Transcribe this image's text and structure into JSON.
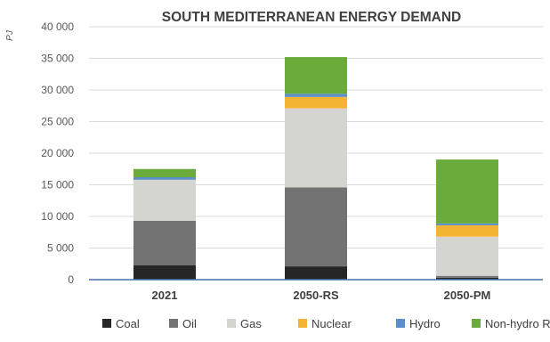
{
  "chart_data": {
    "type": "bar",
    "stacked": true,
    "title": "SOUTH MEDITERRANEAN ENERGY DEMAND",
    "ylabel": "PJ",
    "ylim": [
      0,
      40000
    ],
    "yticks": [
      0,
      5000,
      10000,
      15000,
      20000,
      25000,
      30000,
      35000,
      40000
    ],
    "ytick_labels": [
      "0",
      "5 000",
      "10 000",
      "15 000",
      "20 000",
      "25 000",
      "30 000",
      "35 000",
      "40 000"
    ],
    "grid": true,
    "legend_position": "bottom",
    "categories": [
      "2021",
      "2050-RS",
      "2050-PM"
    ],
    "series": [
      {
        "name": "Coal",
        "color": "#262626",
        "values": [
          2300,
          2100,
          300
        ]
      },
      {
        "name": "Oil",
        "color": "#737373",
        "values": [
          7000,
          12500,
          300
        ]
      },
      {
        "name": "Gas",
        "color": "#d4d4d0",
        "values": [
          6500,
          12500,
          6200
        ]
      },
      {
        "name": "Nuclear",
        "color": "#f5b335",
        "values": [
          0,
          1800,
          1800
        ]
      },
      {
        "name": "Hydro",
        "color": "#5a8fc9",
        "values": [
          400,
          500,
          300
        ]
      },
      {
        "name": "Non-hydro RES",
        "color": "#6aab3c",
        "values": [
          1300,
          5800,
          10100
        ]
      }
    ]
  }
}
